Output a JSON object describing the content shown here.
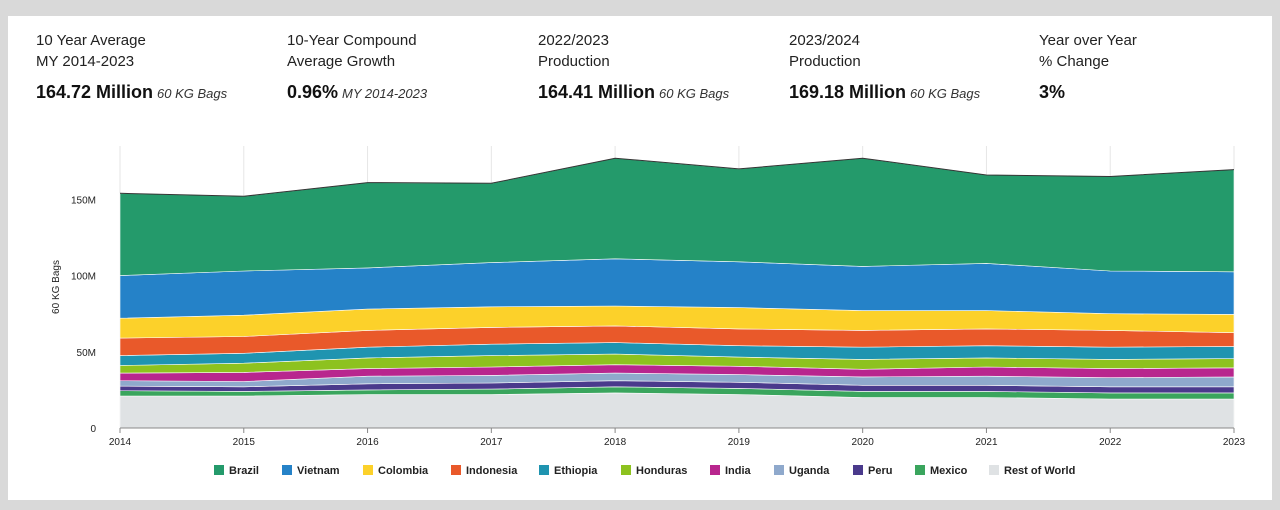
{
  "stats": [
    {
      "label1": "10 Year Average",
      "label2": "MY 2014-2023",
      "value": "164.72 Million",
      "unit": "60 KG Bags"
    },
    {
      "label1": "10-Year Compound",
      "label2": "Average Growth",
      "value": "0.96%",
      "unit": "MY 2014-2023"
    },
    {
      "label1": "2022/2023",
      "label2": "Production",
      "value": "164.41 Million",
      "unit": "60 KG Bags"
    },
    {
      "label1": "2023/2024",
      "label2": "Production",
      "value": "169.18 Million",
      "unit": "60 KG Bags"
    },
    {
      "label1": "Year over Year",
      "label2": "% Change",
      "value": "3%",
      "unit": ""
    }
  ],
  "chart_data": {
    "type": "area",
    "stacked": true,
    "title": "",
    "xlabel": "",
    "ylabel": "60 KG Bags",
    "x": [
      "2014",
      "2015",
      "2016",
      "2017",
      "2018",
      "2019",
      "2020",
      "2021",
      "2022",
      "2023"
    ],
    "ylim": [
      0,
      185
    ],
    "yticks": [
      0,
      50,
      100,
      150
    ],
    "ytick_labels": [
      "0",
      "50M",
      "100M",
      "150M"
    ],
    "grid": "vertical",
    "legend_position": "bottom",
    "series": [
      {
        "name": "Rest of World",
        "color": "#dfe2e4",
        "values": [
          21,
          21,
          22,
          22,
          23,
          22,
          20,
          20,
          19,
          19
        ]
      },
      {
        "name": "Mexico",
        "color": "#3aa55d",
        "values": [
          3.5,
          3,
          3,
          3.5,
          4,
          4,
          4,
          4,
          4,
          4
        ]
      },
      {
        "name": "Peru",
        "color": "#4a3a8c",
        "values": [
          3,
          3,
          4,
          4,
          4,
          4,
          4,
          4,
          4,
          4
        ]
      },
      {
        "name": "Uganda",
        "color": "#8fa9cc",
        "values": [
          3.5,
          3.5,
          5,
          5,
          5,
          5,
          5.5,
          6,
          6,
          6.5
        ]
      },
      {
        "name": "India",
        "color": "#b8268e",
        "values": [
          5,
          6,
          5,
          5.5,
          5.5,
          5.5,
          5,
          6,
          6,
          6
        ]
      },
      {
        "name": "Honduras",
        "color": "#8dc21f",
        "values": [
          5,
          6,
          7,
          7.5,
          7,
          6,
          6.5,
          6,
          6,
          6
        ]
      },
      {
        "name": "Ethiopia",
        "color": "#1f94b0",
        "values": [
          6.5,
          6.5,
          7,
          7.5,
          7.5,
          7.5,
          8,
          8,
          8,
          8
        ]
      },
      {
        "name": "Indonesia",
        "color": "#e9592a",
        "values": [
          11.5,
          11,
          11,
          11,
          11,
          11,
          11,
          11,
          11,
          9
        ]
      },
      {
        "name": "Colombia",
        "color": "#fcd12a",
        "values": [
          13,
          14,
          14,
          13.5,
          13,
          14,
          13,
          12,
          11,
          12
        ]
      },
      {
        "name": "Vietnam",
        "color": "#2582c8",
        "values": [
          28,
          29,
          27,
          29,
          31,
          30,
          29,
          31,
          28,
          28
        ]
      },
      {
        "name": "Brazil",
        "color": "#249a6b",
        "values": [
          54,
          49,
          56,
          52,
          66,
          61,
          71,
          58,
          62,
          67
        ]
      }
    ],
    "legend_order": [
      "Brazil",
      "Vietnam",
      "Colombia",
      "Indonesia",
      "Ethiopia",
      "Honduras",
      "India",
      "Uganda",
      "Peru",
      "Mexico",
      "Rest of World"
    ]
  }
}
